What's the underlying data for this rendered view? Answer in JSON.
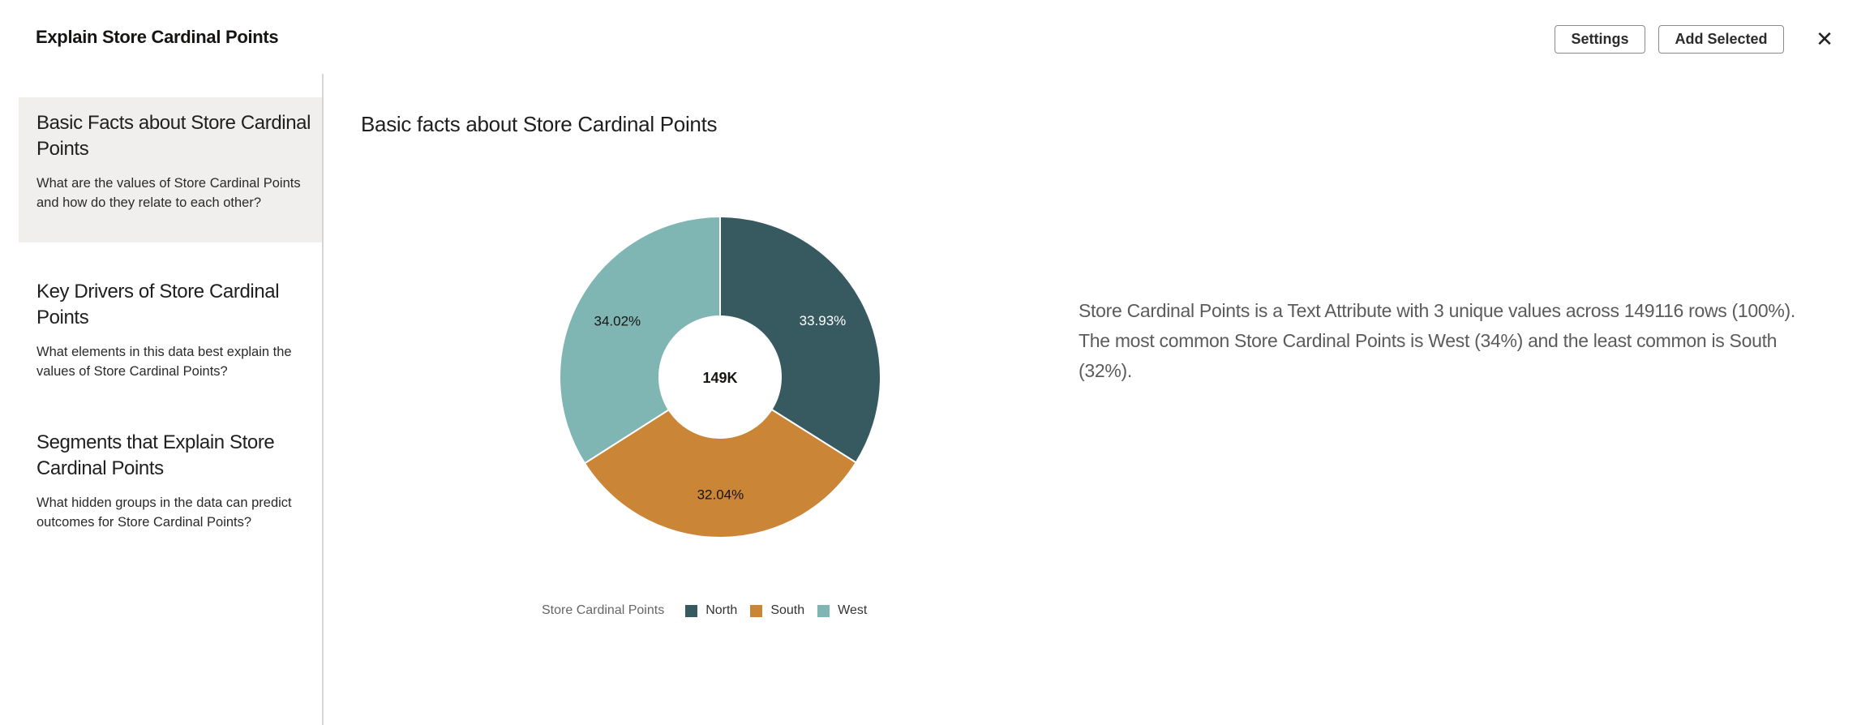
{
  "header": {
    "title": "Explain Store Cardinal Points",
    "settings_label": "Settings",
    "add_selected_label": "Add Selected",
    "close_icon": "close-icon"
  },
  "sidebar": {
    "items": [
      {
        "title": "Basic Facts about Store Cardinal Points",
        "description": "What are the values of Store Cardinal Points and how do they relate to each other?",
        "selected": true
      },
      {
        "title": "Key Drivers of Store Cardinal Points",
        "description": "What elements in this data best explain the values of Store Cardinal Points?",
        "selected": false
      },
      {
        "title": "Segments that Explain Store Cardinal Points",
        "description": "What hidden groups in the data can predict outcomes for Store Cardinal Points?",
        "selected": false
      }
    ]
  },
  "main": {
    "title": "Basic facts about Store Cardinal Points",
    "description": "Store Cardinal Points is a Text Attribute with 3 unique values across 149116 rows (100%). The most common Store Cardinal Points is West (34%) and the least common is South (32%)."
  },
  "chart_data": {
    "type": "pie",
    "donut": true,
    "center_label": "149K",
    "legend_title": "Store Cardinal Points",
    "legend_position": "bottom",
    "categories": [
      "North",
      "South",
      "West"
    ],
    "values": [
      33.93,
      32.04,
      34.02
    ],
    "labels": [
      "33.93%",
      "32.04%",
      "34.02%"
    ],
    "colors": [
      "#375a60",
      "#cb8537",
      "#7fb5b3"
    ],
    "label_colors": [
      "#ffffff",
      "#161513",
      "#161513"
    ]
  }
}
